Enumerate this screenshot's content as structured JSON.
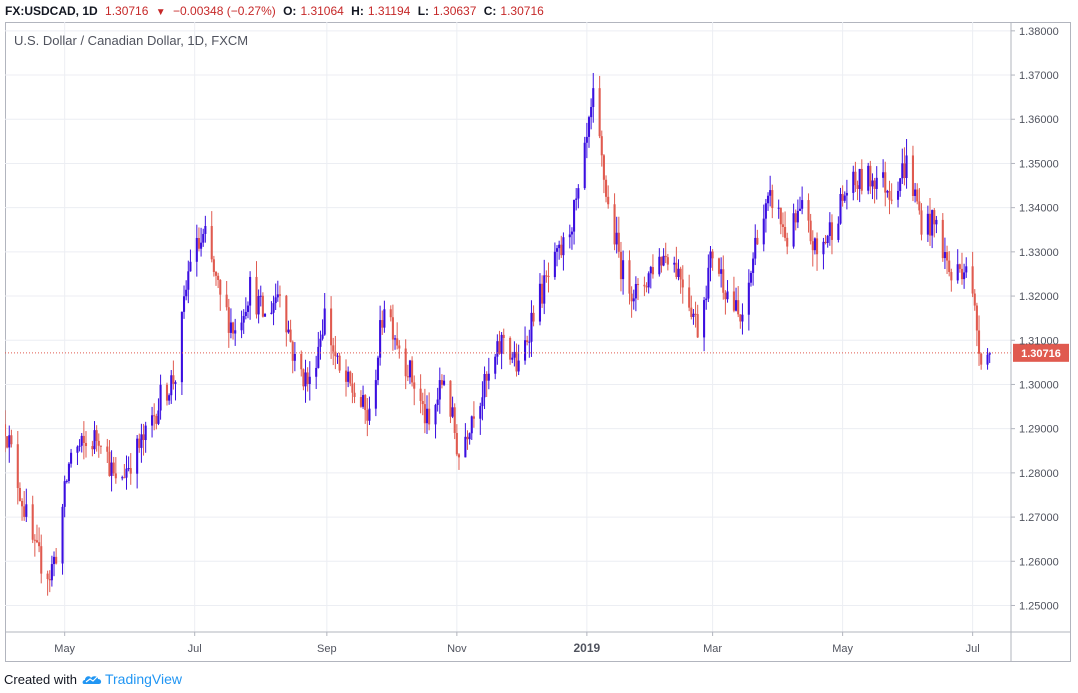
{
  "header": {
    "symbol": "FX:USDCAD, 1D",
    "last": "1.30716",
    "change": "−0.00348 (−0.27%)",
    "open_label": "O:",
    "open": "1.31064",
    "high_label": "H:",
    "high": "1.31194",
    "low_label": "L:",
    "low": "1.30637",
    "close_label": "C:",
    "close": "1.30716"
  },
  "footer": {
    "created_with": "Created with",
    "brand": "TradingView"
  },
  "colors": {
    "up": "#3a0ee0",
    "down": "#e05a4f",
    "grid": "#eceef3",
    "price_line": "#e05a4f"
  },
  "chart_data": {
    "type": "candlestick",
    "subtitle": "U.S. Dollar / Canadian Dollar, 1D, FXCM",
    "ylim": [
      1.244,
      1.382
    ],
    "y_ticks": [
      "1.25000",
      "1.26000",
      "1.27000",
      "1.28000",
      "1.29000",
      "1.30000",
      "1.31000",
      "1.32000",
      "1.33000",
      "1.34000",
      "1.35000",
      "1.36000",
      "1.37000",
      "1.38000"
    ],
    "x_ticks": [
      {
        "label": "May",
        "date": "2018-05-01"
      },
      {
        "label": "Jul",
        "date": "2018-07-01"
      },
      {
        "label": "Sep",
        "date": "2018-09-01"
      },
      {
        "label": "Nov",
        "date": "2018-11-01"
      },
      {
        "label": "2019",
        "date": "2019-01-01",
        "bold": true
      },
      {
        "label": "Mar",
        "date": "2019-03-01"
      },
      {
        "label": "May",
        "date": "2019-05-01"
      },
      {
        "label": "Jul",
        "date": "2019-07-01"
      }
    ],
    "x_range": [
      "2018-04-03",
      "2019-07-19"
    ],
    "last_price": 1.30716,
    "last_price_label": "1.30716",
    "price_path": [
      [
        "2018-04-03",
        1.291
      ],
      [
        "2018-04-10",
        1.276
      ],
      [
        "2018-04-17",
        1.262
      ],
      [
        "2018-04-24",
        1.257
      ],
      [
        "2018-04-27",
        1.262
      ],
      [
        "2018-05-04",
        1.285
      ],
      [
        "2018-05-11",
        1.286
      ],
      [
        "2018-05-18",
        1.289
      ],
      [
        "2018-05-25",
        1.277
      ],
      [
        "2018-06-01",
        1.283
      ],
      [
        "2018-06-08",
        1.288
      ],
      [
        "2018-06-15",
        1.297
      ],
      [
        "2018-06-22",
        1.302
      ],
      [
        "2018-06-29",
        1.329
      ],
      [
        "2018-07-06",
        1.333
      ],
      [
        "2018-07-13",
        1.319
      ],
      [
        "2018-07-20",
        1.312
      ],
      [
        "2018-07-27",
        1.322
      ],
      [
        "2018-08-03",
        1.315
      ],
      [
        "2018-08-10",
        1.322
      ],
      [
        "2018-08-17",
        1.305
      ],
      [
        "2018-08-24",
        1.3
      ],
      [
        "2018-08-31",
        1.316
      ],
      [
        "2018-09-07",
        1.302
      ],
      [
        "2018-09-14",
        1.298
      ],
      [
        "2018-09-21",
        1.292
      ],
      [
        "2018-09-28",
        1.319
      ],
      [
        "2018-10-05",
        1.309
      ],
      [
        "2018-10-12",
        1.3
      ],
      [
        "2018-10-19",
        1.29
      ],
      [
        "2018-10-26",
        1.302
      ],
      [
        "2018-11-02",
        1.284
      ],
      [
        "2018-11-09",
        1.295
      ],
      [
        "2018-11-16",
        1.301
      ],
      [
        "2018-11-23",
        1.311
      ],
      [
        "2018-11-30",
        1.303
      ],
      [
        "2018-12-07",
        1.317
      ],
      [
        "2018-12-14",
        1.324
      ],
      [
        "2018-12-21",
        1.331
      ],
      [
        "2018-12-28",
        1.342
      ],
      [
        "2019-01-04",
        1.364
      ],
      [
        "2019-01-11",
        1.34
      ],
      [
        "2019-01-18",
        1.325
      ],
      [
        "2019-01-25",
        1.32
      ],
      [
        "2019-02-01",
        1.327
      ],
      [
        "2019-02-08",
        1.33
      ],
      [
        "2019-02-15",
        1.324
      ],
      [
        "2019-02-22",
        1.313
      ],
      [
        "2019-03-01",
        1.33
      ],
      [
        "2019-03-08",
        1.321
      ],
      [
        "2019-03-15",
        1.313
      ],
      [
        "2019-03-22",
        1.335
      ],
      [
        "2019-03-29",
        1.342
      ],
      [
        "2019-04-05",
        1.333
      ],
      [
        "2019-04-12",
        1.339
      ],
      [
        "2019-04-19",
        1.329
      ],
      [
        "2019-04-26",
        1.336
      ],
      [
        "2019-05-03",
        1.344
      ],
      [
        "2019-05-10",
        1.346
      ],
      [
        "2019-05-17",
        1.347
      ],
      [
        "2019-05-24",
        1.344
      ],
      [
        "2019-05-31",
        1.35
      ],
      [
        "2019-06-07",
        1.337
      ],
      [
        "2019-06-14",
        1.336
      ],
      [
        "2019-06-21",
        1.324
      ],
      [
        "2019-06-28",
        1.328
      ],
      [
        "2019-07-05",
        1.307
      ],
      [
        "2019-07-09",
        1.307
      ]
    ],
    "volatility": 0.0042
  }
}
